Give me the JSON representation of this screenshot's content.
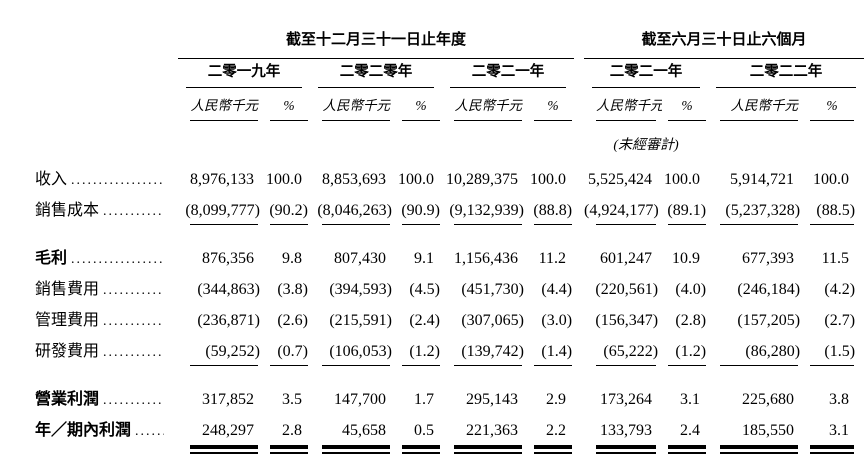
{
  "table": {
    "sections": [
      {
        "title": "截至十二月三十一日止年度"
      },
      {
        "title": "截至六月三十日止六個月"
      }
    ],
    "groups": [
      {
        "year": "二零一九年"
      },
      {
        "year": "二零二零年"
      },
      {
        "year": "二零二一年"
      },
      {
        "year": "二零二一年"
      },
      {
        "year": "二零二二年"
      }
    ],
    "unit_label": "人民幣千元",
    "percent_label": "%",
    "unaudited_note": "(未經審計)",
    "rows": [
      {
        "label": "收入",
        "emphasis": false,
        "rule_after": "none",
        "values": [
          "8,976,133",
          "100.0",
          "8,853,693",
          "100.0",
          "10,289,375",
          "100.0",
          "5,525,424",
          "100.0",
          "5,914,721",
          "100.0"
        ]
      },
      {
        "label": "銷售成本",
        "emphasis": false,
        "rule_after": "single",
        "values": [
          "(8,099,777)",
          "(90.2)",
          "(8,046,263)",
          "(90.9)",
          "(9,132,939)",
          "(88.8)",
          "(4,924,177)",
          "(89.1)",
          "(5,237,328)",
          "(88.5)"
        ]
      },
      {
        "label": "毛利",
        "emphasis": true,
        "tall": true,
        "rule_after": "none",
        "values": [
          "876,356",
          "9.8",
          "807,430",
          "9.1",
          "1,156,436",
          "11.2",
          "601,247",
          "10.9",
          "677,393",
          "11.5"
        ]
      },
      {
        "label": "銷售費用",
        "emphasis": false,
        "rule_after": "none",
        "values": [
          "(344,863)",
          "(3.8)",
          "(394,593)",
          "(4.5)",
          "(451,730)",
          "(4.4)",
          "(220,561)",
          "(4.0)",
          "(246,184)",
          "(4.2)"
        ]
      },
      {
        "label": "管理費用",
        "emphasis": false,
        "rule_after": "none",
        "values": [
          "(236,871)",
          "(2.6)",
          "(215,591)",
          "(2.4)",
          "(307,065)",
          "(3.0)",
          "(156,347)",
          "(2.8)",
          "(157,205)",
          "(2.7)"
        ]
      },
      {
        "label": "研發費用",
        "emphasis": false,
        "rule_after": "single",
        "values": [
          "(59,252)",
          "(0.7)",
          "(106,053)",
          "(1.2)",
          "(139,742)",
          "(1.4)",
          "(65,222)",
          "(1.2)",
          "(86,280)",
          "(1.5)"
        ]
      },
      {
        "label": "營業利潤",
        "emphasis": true,
        "tall": true,
        "rule_after": "none",
        "values": [
          "317,852",
          "3.5",
          "147,700",
          "1.7",
          "295,143",
          "2.9",
          "173,264",
          "3.1",
          "225,680",
          "3.8"
        ]
      },
      {
        "label": "年／期內利潤",
        "emphasis": true,
        "rule_after": "double",
        "values": [
          "248,297",
          "2.8",
          "45,658",
          "0.5",
          "221,363",
          "2.2",
          "133,793",
          "2.4",
          "185,550",
          "3.1"
        ]
      }
    ]
  }
}
